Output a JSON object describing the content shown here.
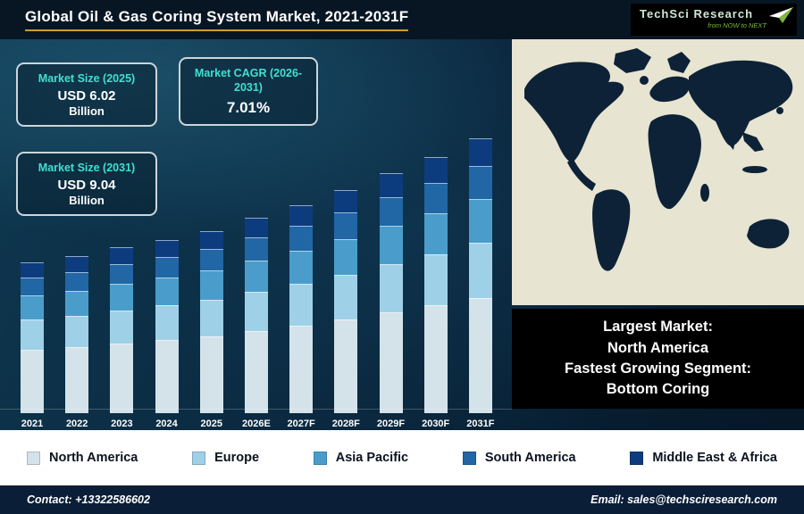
{
  "header": {
    "title": "Global Oil & Gas Coring System Market, 2021-2031F",
    "logo": {
      "name": "TechSci Research",
      "tagline": "from NOW to NEXT"
    }
  },
  "stats": {
    "size_2025": {
      "label": "Market Size (2025)",
      "value": "USD 6.02",
      "unit": "Billion"
    },
    "cagr": {
      "label": "Market CAGR (2026-2031)",
      "value": "7.01%"
    },
    "size_2031": {
      "label": "Market Size (2031)",
      "value": "USD 9.04",
      "unit": "Billion"
    }
  },
  "chart_data": {
    "type": "bar",
    "stacked": true,
    "title": "Global Oil & Gas Coring System Market, 2021-2031F",
    "unit": "USD Billion",
    "categories": [
      "2021",
      "2022",
      "2023",
      "2024",
      "2025",
      "2026E",
      "2027F",
      "2028F",
      "2029F",
      "2030F",
      "2031F"
    ],
    "series": [
      {
        "name": "North America",
        "color": "#d4e2ea",
        "values": [
          2.08,
          2.18,
          2.29,
          2.4,
          2.53,
          2.7,
          2.89,
          3.1,
          3.31,
          3.55,
          3.8
        ]
      },
      {
        "name": "Europe",
        "color": "#9ed1e8",
        "values": [
          0.99,
          1.04,
          1.09,
          1.14,
          1.2,
          1.29,
          1.38,
          1.47,
          1.58,
          1.69,
          1.81
        ]
      },
      {
        "name": "Asia Pacific",
        "color": "#4a9dcb",
        "values": [
          0.79,
          0.83,
          0.87,
          0.92,
          0.96,
          1.03,
          1.1,
          1.18,
          1.26,
          1.35,
          1.45
        ]
      },
      {
        "name": "South America",
        "color": "#2166a5",
        "values": [
          0.59,
          0.62,
          0.65,
          0.69,
          0.72,
          0.77,
          0.83,
          0.88,
          0.95,
          1.01,
          1.08
        ]
      },
      {
        "name": "Middle East & Africa",
        "color": "#0d3c7e",
        "values": [
          0.5,
          0.52,
          0.55,
          0.57,
          0.6,
          0.64,
          0.69,
          0.74,
          0.79,
          0.85,
          0.9
        ]
      }
    ],
    "totals": [
      4.95,
      5.2,
      5.45,
      5.72,
      6.02,
      6.44,
      6.89,
      7.37,
      7.89,
      8.45,
      9.04
    ],
    "ylim": [
      0,
      9.5
    ],
    "legend_position": "bottom",
    "grid": false
  },
  "map_note": [
    "Largest Market:",
    "North America",
    "Fastest Growing Segment:",
    "Bottom Coring"
  ],
  "footer": {
    "contact": "Contact: +13322586602",
    "email": "Email: sales@techsciresearch.com"
  },
  "colors": {
    "accent_gold": "#c9a227",
    "accent_cyan": "#3fe0cf",
    "map_land": "#0d2236",
    "map_ocean": "#e7e4d2"
  }
}
